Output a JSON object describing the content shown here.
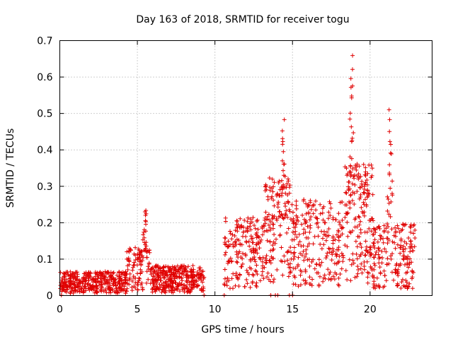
{
  "chart_data": {
    "type": "scatter",
    "title": "Day 163 of 2018, SRMTID for receiver togu",
    "xlabel": "GPS time / hours",
    "ylabel": "SRMTID / TECUs",
    "xlim": [
      0,
      24
    ],
    "ylim": [
      0,
      0.7
    ],
    "xticks": [
      0,
      5,
      10,
      15,
      20
    ],
    "yticks": [
      0,
      0.1,
      0.2,
      0.3,
      0.4,
      0.5,
      0.6,
      0.7
    ],
    "grid": true,
    "marker": "+",
    "color": "#e00000",
    "clusters": [
      {
        "x_start": 0.0,
        "x_end": 4.3,
        "count": 380,
        "y_min": 0.0,
        "y_max": 0.09,
        "y_typical": 0.04
      },
      {
        "x_start": 4.3,
        "x_end": 5.8,
        "count": 110,
        "y_min": 0.0,
        "y_max": 0.25,
        "y_typical": 0.08
      },
      {
        "x_start": 5.8,
        "x_end": 9.3,
        "count": 340,
        "y_min": 0.0,
        "y_max": 0.12,
        "y_typical": 0.05
      },
      {
        "x_start": 10.6,
        "x_end": 13.2,
        "count": 190,
        "y_min": 0.02,
        "y_max": 0.28,
        "y_typical": 0.13
      },
      {
        "x_start": 13.2,
        "x_end": 14.9,
        "count": 150,
        "y_min": 0.0,
        "y_max": 0.49,
        "y_typical": 0.2
      },
      {
        "x_start": 14.9,
        "x_end": 18.3,
        "count": 230,
        "y_min": 0.0,
        "y_max": 0.35,
        "y_typical": 0.16
      },
      {
        "x_start": 18.3,
        "x_end": 20.2,
        "count": 190,
        "y_min": 0.02,
        "y_max": 0.67,
        "y_typical": 0.22
      },
      {
        "x_start": 20.2,
        "x_end": 22.9,
        "count": 200,
        "y_min": 0.0,
        "y_max": 0.52,
        "y_typical": 0.12
      }
    ],
    "peaks": [
      {
        "x": 5.5,
        "y": 0.24
      },
      {
        "x": 14.4,
        "y": 0.49
      },
      {
        "x": 18.8,
        "y": 0.665
      },
      {
        "x": 21.3,
        "y": 0.52
      }
    ],
    "zero_points_x": [
      0.1,
      9.3,
      10.6,
      13.6,
      13.9,
      14.05,
      14.8,
      15.0
    ]
  }
}
